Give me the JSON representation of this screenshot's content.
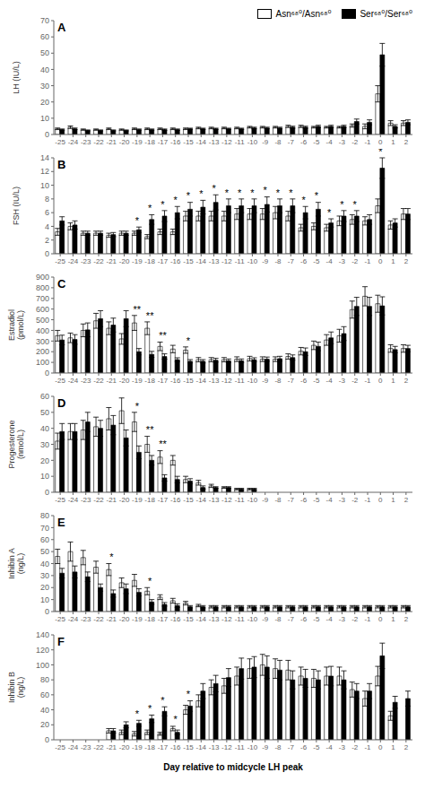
{
  "chart_data": [
    {
      "type": "bar",
      "title": "A",
      "ylabel": "LH (IU/L)",
      "categories": [
        -25,
        -24,
        -23,
        -22,
        -21,
        -20,
        -19,
        -18,
        -17,
        -16,
        -15,
        -14,
        -13,
        -12,
        -11,
        -10,
        -9,
        -8,
        -7,
        -6,
        -5,
        -4,
        -3,
        -2,
        -1,
        0,
        1,
        2
      ],
      "series": [
        {
          "name": "Asn⁶⁸⁰/Asn⁶⁸⁰",
          "color": "#ffffff",
          "values": [
            3.5,
            4.5,
            3.0,
            3.0,
            3.5,
            3.0,
            3.5,
            3.5,
            3.5,
            3.5,
            3.5,
            4.0,
            4.0,
            4.0,
            4.0,
            4.5,
            4.5,
            4.5,
            5.0,
            5.0,
            4.5,
            4.5,
            4.5,
            5.5,
            5.0,
            25.0,
            7.0,
            7.0
          ],
          "errors": [
            0.5,
            0.8,
            0.4,
            0.4,
            0.5,
            0.4,
            0.5,
            0.5,
            0.5,
            0.5,
            0.5,
            0.5,
            0.5,
            0.5,
            0.5,
            0.5,
            0.5,
            0.5,
            0.7,
            0.7,
            0.5,
            0.5,
            0.5,
            1.0,
            1.5,
            5.0,
            1.5,
            1.5
          ]
        },
        {
          "name": "Ser⁶⁸⁰/Ser⁶⁸⁰",
          "color": "#000000",
          "values": [
            3.0,
            3.5,
            2.5,
            2.5,
            2.5,
            2.5,
            3.0,
            3.0,
            3.0,
            3.0,
            3.5,
            3.5,
            3.5,
            3.5,
            3.5,
            4.0,
            4.0,
            4.0,
            4.5,
            4.5,
            5.0,
            5.0,
            5.0,
            8.0,
            7.5,
            49.0,
            5.0,
            7.5
          ],
          "errors": [
            0.4,
            0.5,
            0.3,
            0.3,
            0.3,
            0.3,
            0.4,
            0.4,
            0.4,
            0.4,
            0.4,
            0.4,
            0.4,
            0.4,
            0.4,
            0.5,
            0.5,
            0.5,
            0.6,
            0.6,
            0.7,
            0.7,
            0.7,
            1.5,
            1.5,
            7.0,
            1.0,
            1.5
          ]
        }
      ],
      "ylim": [
        0,
        70
      ],
      "yticks": [
        0,
        10,
        20,
        30,
        40,
        50,
        60,
        70
      ],
      "legend": "upper right",
      "annotations": []
    },
    {
      "type": "bar",
      "title": "B",
      "ylabel": "FSH (IU/L)",
      "categories": [
        -25,
        -24,
        -23,
        -22,
        -21,
        -20,
        -19,
        -18,
        -17,
        -16,
        -15,
        -14,
        -13,
        -12,
        -11,
        -10,
        -9,
        -8,
        -7,
        -6,
        -5,
        -4,
        -3,
        -2,
        -1,
        0,
        1,
        2
      ],
      "series": [
        {
          "color": "#ffffff",
          "values": [
            3.2,
            4.0,
            3.0,
            3.0,
            2.7,
            3.0,
            3.0,
            2.5,
            3.2,
            3.2,
            5.5,
            5.5,
            5.5,
            5.5,
            5.8,
            5.8,
            5.8,
            6.0,
            5.5,
            3.8,
            4.0,
            3.8,
            4.8,
            5.0,
            4.8,
            7.0,
            4.2,
            5.8
          ],
          "errors": [
            0.5,
            0.5,
            0.3,
            0.3,
            0.3,
            0.3,
            0.3,
            0.3,
            0.4,
            0.4,
            0.7,
            0.7,
            0.7,
            0.7,
            0.8,
            0.8,
            0.8,
            0.9,
            0.7,
            0.5,
            0.5,
            0.5,
            0.7,
            0.7,
            0.6,
            1.0,
            0.6,
            0.8
          ]
        },
        {
          "color": "#000000",
          "values": [
            4.8,
            4.2,
            3.0,
            3.0,
            2.8,
            3.0,
            3.5,
            5.0,
            5.5,
            6.0,
            6.5,
            6.8,
            7.5,
            7.0,
            7.0,
            7.0,
            7.2,
            7.0,
            7.0,
            6.0,
            6.5,
            4.5,
            5.5,
            5.5,
            5.0,
            12.5,
            4.5,
            5.8
          ],
          "errors": [
            0.6,
            0.6,
            0.3,
            0.3,
            0.3,
            0.3,
            0.4,
            0.7,
            0.8,
            0.9,
            1.0,
            1.0,
            1.1,
            1.0,
            1.0,
            1.0,
            1.1,
            1.0,
            1.0,
            0.9,
            1.0,
            0.6,
            0.8,
            0.8,
            0.7,
            1.5,
            0.6,
            0.8
          ]
        }
      ],
      "ylim": [
        0,
        14
      ],
      "yticks": [
        0,
        2,
        4,
        6,
        8,
        10,
        12,
        14
      ],
      "annotations": [
        {
          "text": "*",
          "x": -19
        },
        {
          "text": "*",
          "x": -18
        },
        {
          "text": "*",
          "x": -17
        },
        {
          "text": "*",
          "x": -16
        },
        {
          "text": "*",
          "x": -15
        },
        {
          "text": "*",
          "x": -14
        },
        {
          "text": "*",
          "x": -13
        },
        {
          "text": "*",
          "x": -12
        },
        {
          "text": "*",
          "x": -11
        },
        {
          "text": "*",
          "x": -10
        },
        {
          "text": "*",
          "x": -9
        },
        {
          "text": "*",
          "x": -8
        },
        {
          "text": "*",
          "x": -7
        },
        {
          "text": "*",
          "x": -6
        },
        {
          "text": "*",
          "x": -5
        },
        {
          "text": "*",
          "x": -4
        },
        {
          "text": "*",
          "x": -3
        },
        {
          "text": "*",
          "x": -2
        },
        {
          "text": "*",
          "x": 0
        }
      ]
    },
    {
      "type": "bar",
      "title": "C",
      "ylabel": "Estradiol\n(pmol/L)",
      "categories": [
        -25,
        -24,
        -23,
        -22,
        -21,
        -20,
        -19,
        -18,
        -17,
        -16,
        -15,
        -14,
        -13,
        -12,
        -11,
        -10,
        -9,
        -8,
        -7,
        -6,
        -5,
        -4,
        -3,
        -2,
        -1,
        0,
        1,
        2
      ],
      "series": [
        {
          "color": "#ffffff",
          "values": [
            350,
            330,
            400,
            490,
            420,
            320,
            470,
            420,
            250,
            225,
            215,
            125,
            125,
            125,
            130,
            135,
            130,
            130,
            155,
            205,
            260,
            310,
            350,
            595,
            720,
            650,
            230,
            230
          ],
          "errors": [
            50,
            45,
            60,
            70,
            60,
            50,
            70,
            60,
            40,
            35,
            30,
            20,
            20,
            20,
            22,
            22,
            22,
            22,
            25,
            35,
            40,
            50,
            60,
            80,
            90,
            80,
            35,
            35
          ]
        },
        {
          "color": "#000000",
          "values": [
            310,
            315,
            405,
            510,
            450,
            510,
            200,
            175,
            155,
            125,
            110,
            110,
            120,
            115,
            115,
            125,
            130,
            135,
            145,
            200,
            250,
            330,
            370,
            625,
            625,
            630,
            220,
            230
          ],
          "errors": [
            45,
            45,
            65,
            75,
            65,
            75,
            30,
            28,
            25,
            18,
            16,
            16,
            18,
            17,
            17,
            18,
            20,
            22,
            25,
            35,
            40,
            55,
            65,
            85,
            85,
            85,
            30,
            30
          ]
        }
      ],
      "ylim": [
        0,
        900
      ],
      "yticks": [
        0,
        100,
        200,
        300,
        400,
        500,
        600,
        700,
        800,
        900
      ],
      "annotations": [
        {
          "text": "*",
          "x": -15
        },
        {
          "text": "**",
          "x": -19
        },
        {
          "text": "**",
          "x": -18
        },
        {
          "text": "**",
          "x": -17
        }
      ]
    },
    {
      "type": "bar",
      "title": "D",
      "ylabel": "Progesterone\n(nmol/L)",
      "categories": [
        -25,
        -24,
        -23,
        -22,
        -21,
        -20,
        -19,
        -18,
        -17,
        -16,
        -15,
        -14,
        -13,
        -12,
        -11,
        -10,
        -9,
        -8,
        -7,
        -6,
        -5,
        -4,
        -3,
        -2,
        -1,
        0,
        1,
        2
      ],
      "series": [
        {
          "color": "#ffffff",
          "values": [
            32,
            38,
            39,
            41,
            46,
            51,
            44,
            30,
            22,
            20,
            8,
            6,
            4,
            3,
            2,
            2,
            0,
            0,
            0,
            0,
            0,
            0,
            0,
            0,
            0,
            0,
            0,
            0
          ],
          "errors": [
            5,
            5,
            6,
            6,
            7,
            8,
            6,
            5,
            4,
            3,
            2,
            1.5,
            1,
            0.5,
            0.5,
            0.5,
            0,
            0,
            0,
            0,
            0,
            0,
            0,
            0,
            0,
            0,
            0,
            0
          ]
        },
        {
          "color": "#000000",
          "values": [
            38,
            38,
            44,
            40,
            42,
            34,
            25,
            20,
            9,
            8,
            7,
            3,
            3,
            3,
            2,
            2,
            0,
            0,
            0,
            0,
            0,
            0,
            0,
            0,
            0,
            0,
            0,
            0
          ],
          "errors": [
            5,
            5,
            6,
            5,
            6,
            5,
            4,
            3,
            2,
            2,
            1.5,
            1,
            0.5,
            0.5,
            0.5,
            0.5,
            0,
            0,
            0,
            0,
            0,
            0,
            0,
            0,
            0,
            0,
            0,
            0
          ]
        }
      ],
      "ylim": [
        0,
        60
      ],
      "yticks": [
        0,
        10,
        20,
        30,
        40,
        50,
        60
      ],
      "annotations": [
        {
          "text": "*",
          "x": -19
        },
        {
          "text": "**",
          "x": -18
        },
        {
          "text": "**",
          "x": -17
        }
      ]
    },
    {
      "type": "bar",
      "title": "E",
      "ylabel": "Inhibin A\n(ng/L)",
      "categories": [
        -25,
        -24,
        -23,
        -22,
        -21,
        -20,
        -19,
        -18,
        -17,
        -16,
        -15,
        -14,
        -13,
        -12,
        -11,
        -10,
        -9,
        -8,
        -7,
        -6,
        -5,
        -4,
        -3,
        -2,
        -1,
        0,
        1,
        2
      ],
      "series": [
        {
          "color": "#ffffff",
          "values": [
            46,
            50,
            45,
            37,
            35,
            24,
            26,
            17,
            12,
            9,
            7,
            5,
            4,
            4,
            4,
            4,
            4,
            4,
            4,
            4,
            4,
            4,
            4,
            4,
            4,
            4,
            4,
            4
          ],
          "errors": [
            6,
            8,
            6,
            5,
            5,
            4,
            5,
            3,
            2,
            2,
            1.5,
            1,
            1,
            1,
            1,
            1,
            1,
            1,
            1,
            1,
            1,
            1,
            1,
            1,
            1,
            1,
            1,
            1
          ]
        },
        {
          "color": "#000000",
          "values": [
            32,
            33,
            29,
            20,
            15,
            19,
            16,
            8,
            6,
            5,
            4,
            4,
            4,
            4,
            4,
            4,
            4,
            4,
            4,
            4,
            4,
            4,
            4,
            4,
            4,
            4,
            4,
            4
          ],
          "errors": [
            4,
            5,
            4,
            3,
            3,
            4,
            3,
            2,
            1.5,
            1.5,
            1,
            1,
            1,
            1,
            1,
            1,
            1,
            1,
            1,
            1,
            1,
            1,
            1,
            1,
            1,
            1,
            1,
            1
          ]
        }
      ],
      "ylim": [
        0,
        80
      ],
      "yticks": [
        0,
        10,
        20,
        30,
        40,
        50,
        60,
        70,
        80
      ],
      "annotations": [
        {
          "text": "*",
          "x": -21
        },
        {
          "text": "*",
          "x": -18
        }
      ]
    },
    {
      "type": "bar",
      "title": "F",
      "ylabel": "Inhibin B\n(ng/L)",
      "xlabel": "Day relative to midcycle LH peak",
      "categories": [
        -25,
        -24,
        -23,
        -22,
        -21,
        -20,
        -19,
        -18,
        -17,
        -16,
        -15,
        -14,
        -13,
        -12,
        -11,
        -10,
        -9,
        -8,
        -7,
        -6,
        -5,
        -4,
        -3,
        -2,
        -1,
        0,
        1,
        2
      ],
      "series": [
        {
          "color": "#ffffff",
          "values": [
            0,
            0,
            0,
            0,
            12,
            10,
            8,
            10,
            8,
            15,
            40,
            52,
            70,
            72,
            85,
            95,
            100,
            95,
            93,
            85,
            82,
            85,
            85,
            67,
            55,
            85,
            32,
            0
          ],
          "errors": [
            0,
            0,
            0,
            0,
            3,
            3,
            3,
            3,
            2,
            3,
            6,
            8,
            10,
            10,
            12,
            13,
            14,
            13,
            13,
            12,
            12,
            12,
            12,
            10,
            10,
            13,
            6,
            0
          ]
        },
        {
          "color": "#000000",
          "values": [
            0,
            0,
            0,
            0,
            12,
            20,
            22,
            28,
            38,
            10,
            45,
            65,
            75,
            83,
            95,
            97,
            97,
            93,
            80,
            82,
            80,
            85,
            80,
            65,
            65,
            112,
            50,
            55
          ],
          "errors": [
            0,
            0,
            0,
            0,
            3,
            4,
            4,
            5,
            6,
            3,
            7,
            10,
            11,
            12,
            14,
            14,
            15,
            13,
            12,
            12,
            12,
            13,
            12,
            10,
            10,
            17,
            8,
            10
          ]
        }
      ],
      "ylim": [
        0,
        140
      ],
      "yticks": [
        0,
        20,
        40,
        60,
        80,
        100,
        120,
        140
      ],
      "annotations": [
        {
          "text": "*",
          "x": -19
        },
        {
          "text": "*",
          "x": -18
        },
        {
          "text": "*",
          "x": -17
        },
        {
          "text": "*",
          "x": -16
        },
        {
          "text": "*",
          "x": -15
        }
      ]
    }
  ]
}
